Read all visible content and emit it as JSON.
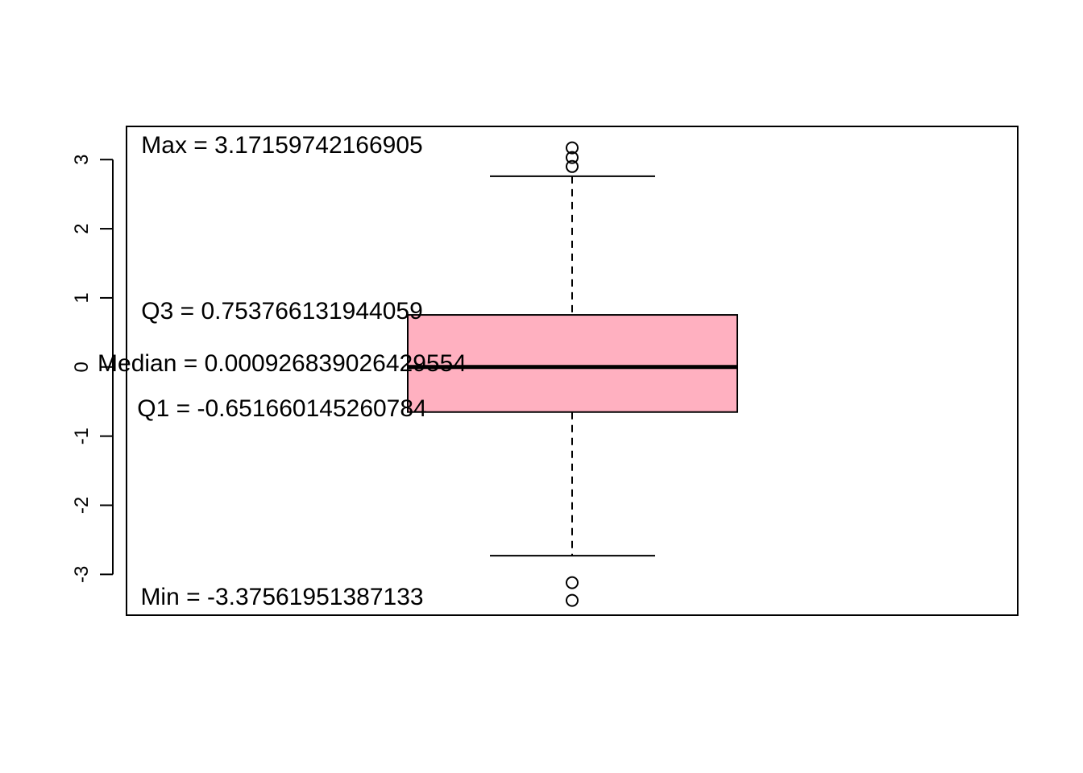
{
  "chart_data": {
    "type": "boxplot",
    "ylim": [
      -3.59,
      3.48
    ],
    "yticks": [
      -3,
      -2,
      -1,
      0,
      1,
      2,
      3
    ],
    "ytick_labels": [
      "-3",
      "-2",
      "-1",
      "0",
      "1",
      "2",
      "3"
    ],
    "box": {
      "lower_whisker": -2.73,
      "q1": -0.651660145260784,
      "median": 0.000926839026429554,
      "q3": 0.753766131944059,
      "upper_whisker": 2.76
    },
    "outliers": [
      3.17,
      3.03,
      2.9,
      -3.12,
      -3.376
    ],
    "fill_color": "#ffb0c0",
    "grid": false,
    "annotations": [
      {
        "label": "Max =  3.17159742166905",
        "value": 3.17159742166905
      },
      {
        "label": "Q3 =  0.753766131944059",
        "value": 0.753766131944059
      },
      {
        "label": "Median =  0.000926839026429554",
        "value": 0.000926839026429554
      },
      {
        "label": "Q1 =  -0.651660145260784",
        "value": -0.651660145260784
      },
      {
        "label": "Min =  -3.37561951387133",
        "value": -3.37561951387133
      }
    ]
  }
}
